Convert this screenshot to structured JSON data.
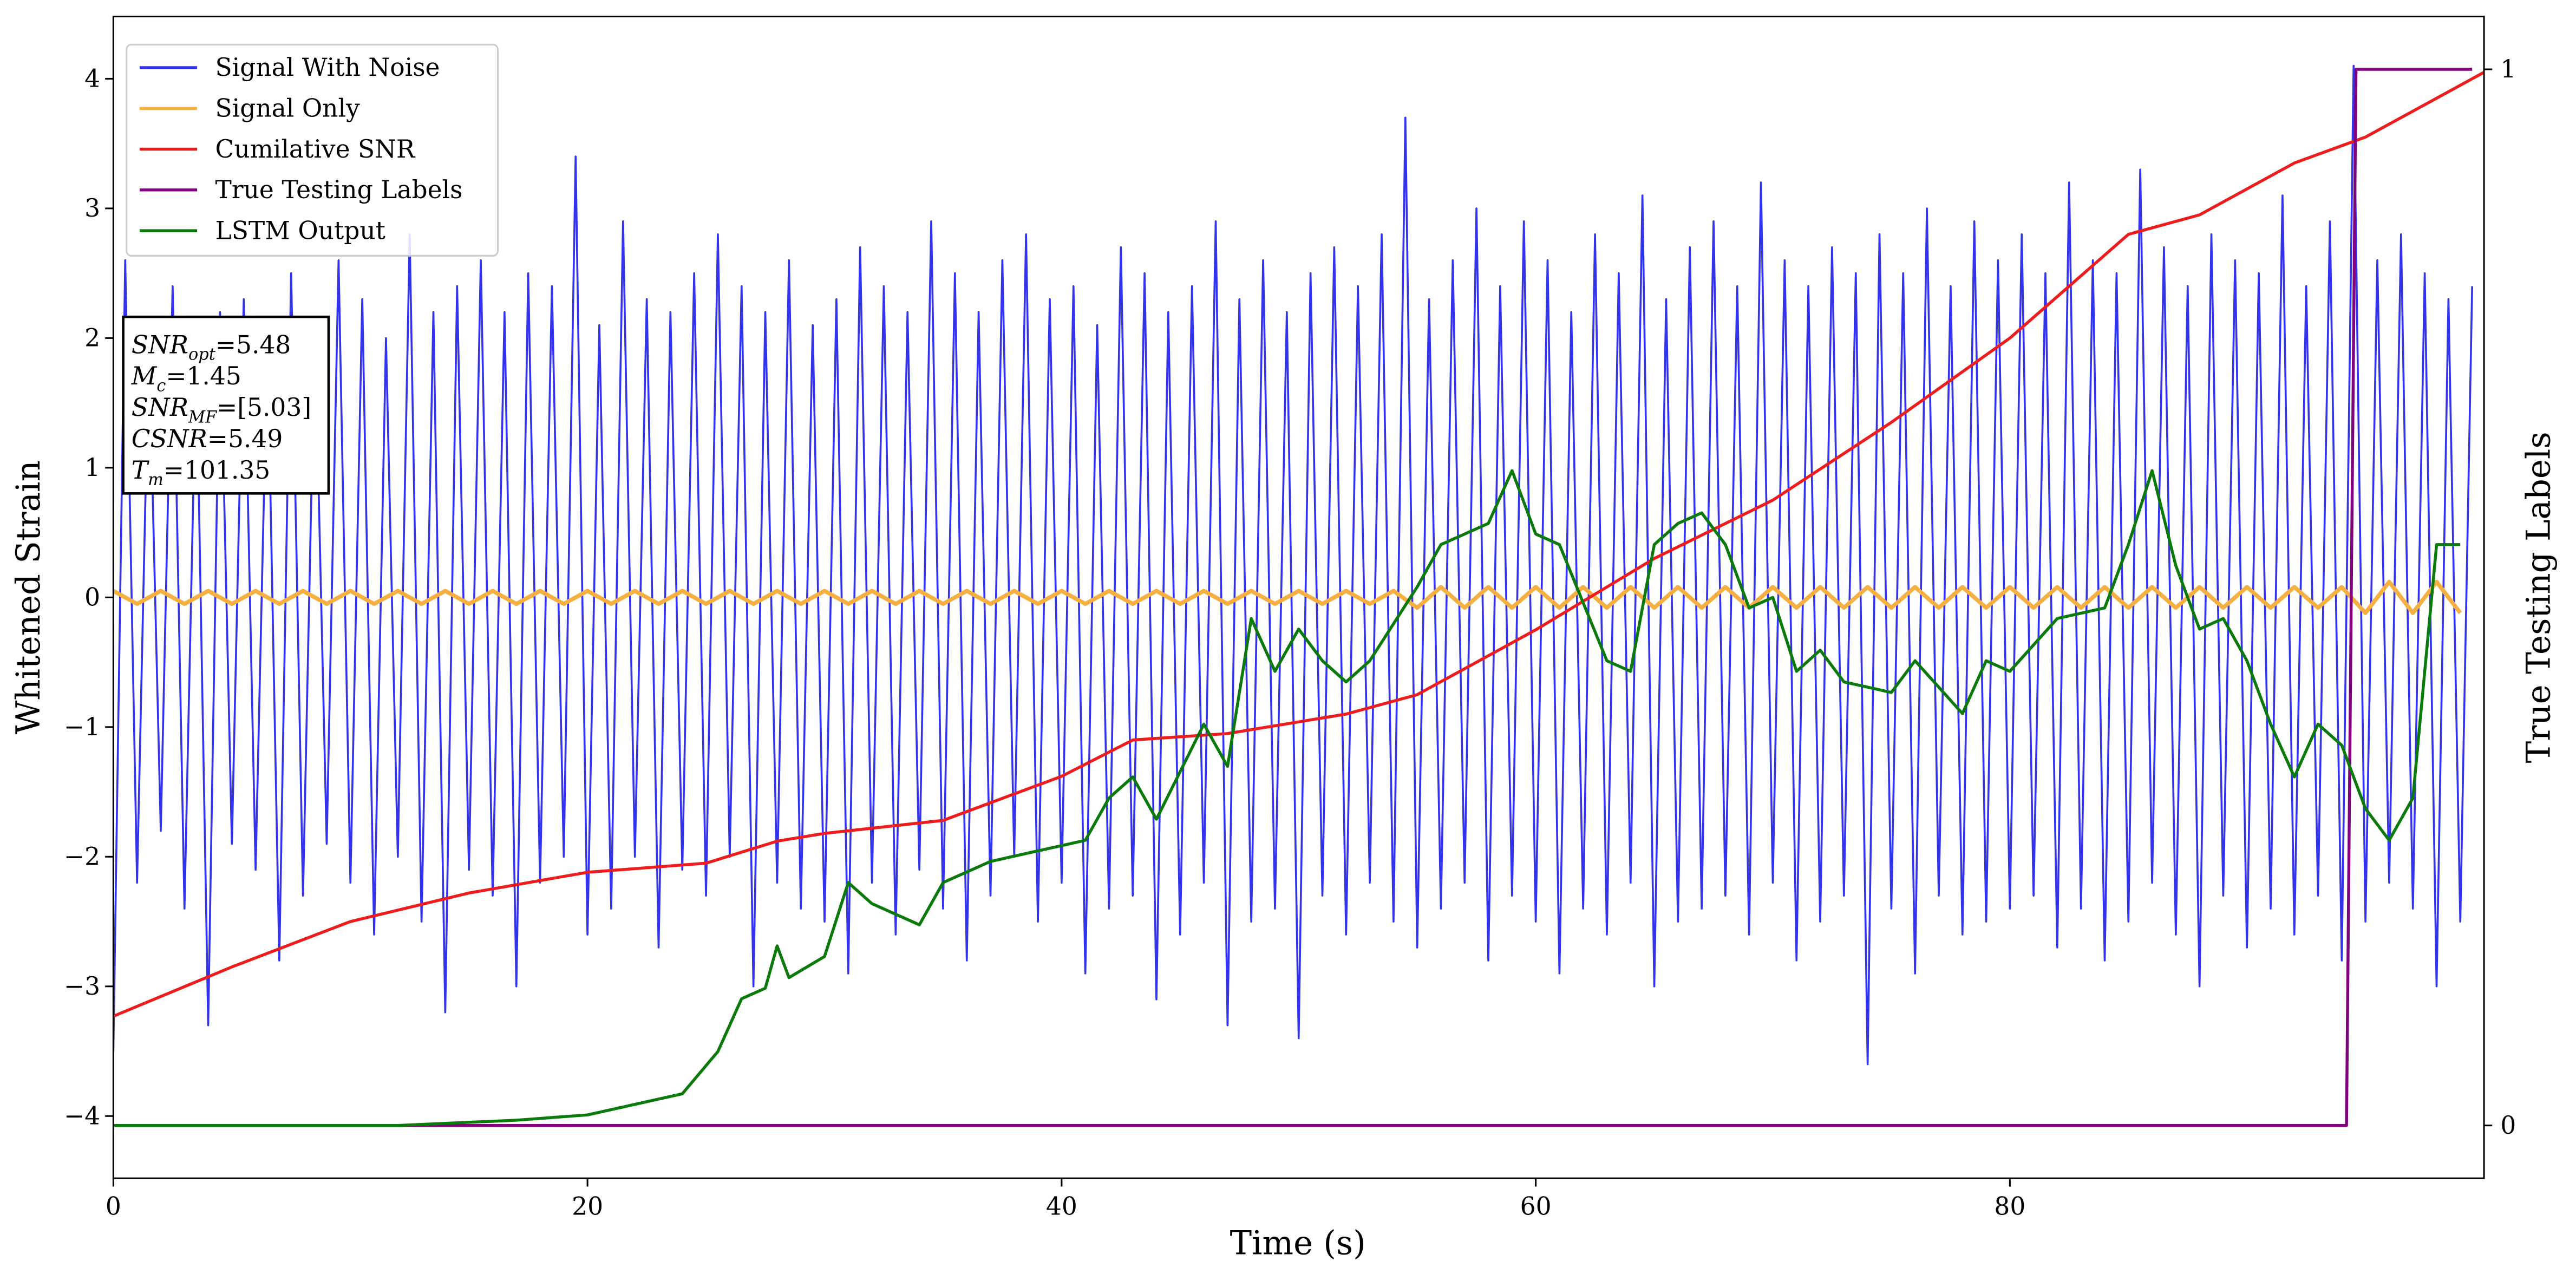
{
  "chart_data": {
    "type": "line",
    "xlabel": "Time (s)",
    "ylabel": "Whitened Strain",
    "y2label": "True Testing Labels",
    "xlim": [
      0,
      100
    ],
    "xticks": [
      0,
      20,
      40,
      60,
      80
    ],
    "ylim": [
      -4.48,
      4.48
    ],
    "yticks": [
      {
        "value": -4,
        "label": "−4"
      },
      {
        "value": -3,
        "label": "−3"
      },
      {
        "value": -2,
        "label": "−2"
      },
      {
        "value": -1,
        "label": "−1"
      },
      0,
      1,
      2,
      3,
      4
    ],
    "y2lim": [
      -0.05,
      1.05
    ],
    "y2ticks": [
      0,
      1
    ],
    "legend": "upper left",
    "annotations": [
      {
        "label": "SNR",
        "subscript": "opt",
        "value": "=5.48"
      },
      {
        "label": "M",
        "subscript": "c",
        "value": "=1.45"
      },
      {
        "label": "SNR",
        "subscript": "MF",
        "value": "=[5.03]"
      },
      {
        "label": "CSNR",
        "value": "=5.49"
      },
      {
        "label": "T",
        "subscript": "m",
        "value": "=101.35"
      }
    ],
    "series": [
      {
        "name": "Signal With Noise",
        "color": "#3333ee",
        "axis": "y",
        "x": [
          0,
          0.5,
          1,
          1.5,
          2,
          2.5,
          3,
          3.5,
          4,
          4.5,
          5,
          5.5,
          6,
          6.5,
          7,
          7.5,
          8,
          8.5,
          9,
          9.5,
          10,
          10.5,
          11,
          11.5,
          12,
          12.5,
          13,
          13.5,
          14,
          14.5,
          15,
          15.5,
          16,
          16.5,
          17,
          17.5,
          18,
          18.5,
          19,
          19.5,
          20,
          20.5,
          21,
          21.5,
          22,
          22.5,
          23,
          23.5,
          24,
          24.5,
          25,
          25.5,
          26,
          26.5,
          27,
          27.5,
          28,
          28.5,
          29,
          29.5,
          30,
          30.5,
          31,
          31.5,
          32,
          32.5,
          33,
          33.5,
          34,
          34.5,
          35,
          35.5,
          36,
          36.5,
          37,
          37.5,
          38,
          38.5,
          39,
          39.5,
          40,
          40.5,
          41,
          41.5,
          42,
          42.5,
          43,
          43.5,
          44,
          44.5,
          45,
          45.5,
          46,
          46.5,
          47,
          47.5,
          48,
          48.5,
          49,
          49.5,
          50,
          50.5,
          51,
          51.5,
          52,
          52.5,
          53,
          53.5,
          54,
          54.5,
          55,
          55.5,
          56,
          56.5,
          57,
          57.5,
          58,
          58.5,
          59,
          59.5,
          60,
          60.5,
          61,
          61.5,
          62,
          62.5,
          63,
          63.5,
          64,
          64.5,
          65,
          65.5,
          66,
          66.5,
          67,
          67.5,
          68,
          68.5,
          69,
          69.5,
          70,
          70.5,
          71,
          71.5,
          72,
          72.5,
          73,
          73.5,
          74,
          74.5,
          75,
          75.5,
          76,
          76.5,
          77,
          77.5,
          78,
          78.5,
          79,
          79.5,
          80,
          80.5,
          81,
          81.5,
          82,
          82.5,
          83,
          83.5,
          84,
          84.5,
          85,
          85.5,
          86,
          86.5,
          87,
          87.5,
          88,
          88.5,
          89,
          89.5,
          90,
          90.5,
          91,
          91.5,
          92,
          92.5,
          93,
          93.5,
          94,
          94.5,
          95,
          95.5,
          96,
          96.5,
          97,
          97.5,
          98,
          98.5,
          99,
          99.5
        ],
        "values": [
          -3.5,
          2.6,
          -2.2,
          2.0,
          -1.8,
          2.4,
          -2.4,
          1.9,
          -3.3,
          2.2,
          -1.9,
          2.3,
          -2.1,
          2.0,
          -2.8,
          2.5,
          -2.3,
          2.1,
          -1.9,
          2.6,
          -2.2,
          2.3,
          -2.6,
          2.0,
          -2.0,
          2.8,
          -2.5,
          2.2,
          -3.2,
          2.4,
          -2.1,
          2.6,
          -2.3,
          2.2,
          -3.0,
          2.5,
          -2.2,
          2.4,
          -2.0,
          3.4,
          -2.6,
          2.1,
          -2.4,
          2.9,
          -2.0,
          2.3,
          -2.7,
          2.2,
          -2.1,
          2.5,
          -2.3,
          2.8,
          -2.0,
          2.4,
          -3.0,
          2.2,
          -2.2,
          2.6,
          -2.4,
          2.1,
          -2.5,
          2.3,
          -2.9,
          2.7,
          -2.2,
          2.4,
          -2.6,
          2.2,
          -2.1,
          2.9,
          -2.4,
          2.5,
          -2.8,
          2.2,
          -2.3,
          2.6,
          -2.0,
          2.8,
          -2.5,
          2.3,
          -2.2,
          2.4,
          -2.9,
          2.1,
          -2.4,
          2.7,
          -2.3,
          2.5,
          -3.1,
          2.2,
          -2.6,
          2.4,
          -2.2,
          2.9,
          -3.3,
          2.3,
          -2.5,
          2.6,
          -2.4,
          2.2,
          -3.4,
          2.5,
          -2.3,
          2.7,
          -2.6,
          2.4,
          -2.2,
          2.8,
          -2.5,
          3.7,
          -2.7,
          2.3,
          -2.4,
          2.6,
          -2.2,
          3.0,
          -2.8,
          2.4,
          -2.3,
          2.9,
          -2.5,
          2.6,
          -2.9,
          2.2,
          -2.4,
          2.8,
          -2.6,
          2.5,
          -2.2,
          3.1,
          -3.0,
          2.3,
          -2.5,
          2.7,
          -2.4,
          2.9,
          -2.3,
          2.4,
          -2.6,
          3.2,
          -2.2,
          2.6,
          -2.8,
          2.4,
          -2.5,
          2.7,
          -2.3,
          2.5,
          -3.6,
          2.8,
          -2.4,
          2.5,
          -2.9,
          3.0,
          -2.3,
          2.4,
          -2.6,
          2.9,
          -2.5,
          2.6,
          -2.4,
          2.8,
          -2.3,
          2.5,
          -2.7,
          3.2,
          -2.4,
          2.6,
          -2.8,
          2.5,
          -2.5,
          3.3,
          -2.2,
          2.7,
          -2.6,
          2.4,
          -3.0,
          2.8,
          -2.3,
          2.6,
          -2.7,
          2.5,
          -2.4,
          3.1,
          -2.6,
          2.4,
          -2.3,
          2.9,
          -2.8,
          4.1,
          -2.5,
          2.6,
          -2.2,
          2.8,
          -2.4,
          2.5,
          -3.0,
          2.3,
          -2.5,
          2.4
        ]
      },
      {
        "name": "Signal Only",
        "color": "#f5b041",
        "axis": "y",
        "x": [
          0,
          1,
          2,
          3,
          4,
          5,
          6,
          7,
          8,
          9,
          10,
          11,
          12,
          13,
          14,
          15,
          16,
          17,
          18,
          19,
          20,
          21,
          22,
          23,
          24,
          25,
          26,
          27,
          28,
          29,
          30,
          31,
          32,
          33,
          34,
          35,
          36,
          37,
          38,
          39,
          40,
          41,
          42,
          43,
          44,
          45,
          46,
          47,
          48,
          49,
          50,
          51,
          52,
          53,
          54,
          55,
          56,
          57,
          58,
          59,
          60,
          61,
          62,
          63,
          64,
          65,
          66,
          67,
          68,
          69,
          70,
          71,
          72,
          73,
          74,
          75,
          76,
          77,
          78,
          79,
          80,
          81,
          82,
          83,
          84,
          85,
          86,
          87,
          88,
          89,
          90,
          91,
          92,
          93,
          94,
          95,
          96,
          97,
          98,
          99
        ],
        "values": [
          0.05,
          -0.05,
          0.05,
          -0.05,
          0.05,
          -0.05,
          0.05,
          -0.05,
          0.05,
          -0.05,
          0.05,
          -0.05,
          0.05,
          -0.05,
          0.05,
          -0.05,
          0.05,
          -0.05,
          0.05,
          -0.05,
          0.05,
          -0.05,
          0.05,
          -0.05,
          0.05,
          -0.05,
          0.05,
          -0.05,
          0.05,
          -0.05,
          0.05,
          -0.05,
          0.05,
          -0.05,
          0.05,
          -0.05,
          0.05,
          -0.05,
          0.05,
          -0.05,
          0.05,
          -0.05,
          0.05,
          -0.05,
          0.05,
          -0.05,
          0.05,
          -0.05,
          0.05,
          -0.05,
          0.05,
          -0.05,
          0.05,
          -0.05,
          0.05,
          -0.08,
          0.08,
          -0.08,
          0.08,
          -0.08,
          0.08,
          -0.08,
          0.08,
          -0.08,
          0.08,
          -0.08,
          0.08,
          -0.08,
          0.08,
          -0.08,
          0.08,
          -0.08,
          0.08,
          -0.08,
          0.08,
          -0.08,
          0.08,
          -0.08,
          0.08,
          -0.08,
          0.08,
          -0.08,
          0.08,
          -0.08,
          0.08,
          -0.08,
          0.08,
          -0.08,
          0.08,
          -0.08,
          0.08,
          -0.08,
          0.08,
          -0.08,
          0.08,
          -0.12,
          0.12,
          -0.12,
          0.12,
          -0.12
        ]
      },
      {
        "name": "Cumilative SNR",
        "color": "#ee1c1c",
        "axis": "y",
        "x": [
          0,
          5,
          10,
          15,
          20,
          25,
          28,
          30,
          35,
          40,
          43,
          47,
          52,
          55,
          60,
          65,
          70,
          75,
          80,
          85,
          88,
          92,
          95,
          100
        ],
        "values": [
          -3.23,
          -2.85,
          -2.5,
          -2.28,
          -2.12,
          -2.05,
          -1.88,
          -1.82,
          -1.72,
          -1.38,
          -1.1,
          -1.05,
          -0.9,
          -0.75,
          -0.25,
          0.3,
          0.75,
          1.35,
          2.0,
          2.8,
          2.95,
          3.35,
          3.55,
          4.05
        ]
      },
      {
        "name": "True Testing Labels",
        "color": "#800080",
        "axis": "y2",
        "x": [
          0,
          94.2,
          94.6,
          99.5
        ],
        "values": [
          0,
          0,
          1,
          1
        ]
      },
      {
        "name": "LSTM Output",
        "color": "#0a7a0a",
        "axis": "y2",
        "x": [
          0,
          12,
          17,
          20,
          22,
          24,
          25.5,
          26.5,
          27.5,
          28,
          28.5,
          30,
          31,
          32,
          34,
          35,
          37,
          39,
          41,
          42,
          43,
          44,
          46,
          47,
          48,
          49,
          50,
          51,
          52,
          53,
          55,
          56,
          58,
          59,
          60,
          61,
          63,
          64,
          65,
          66,
          67,
          68,
          69,
          70,
          71,
          72,
          73,
          75,
          76,
          78,
          79,
          80,
          82,
          84,
          85,
          86,
          87,
          88,
          89,
          90,
          91,
          92,
          93,
          94,
          95,
          96,
          97,
          98,
          99
        ],
        "values": [
          0,
          0,
          0.005,
          0.01,
          0.02,
          0.03,
          0.07,
          0.12,
          0.13,
          0.17,
          0.14,
          0.16,
          0.23,
          0.21,
          0.19,
          0.23,
          0.25,
          0.26,
          0.27,
          0.31,
          0.33,
          0.29,
          0.38,
          0.34,
          0.48,
          0.43,
          0.47,
          0.44,
          0.42,
          0.44,
          0.51,
          0.55,
          0.57,
          0.62,
          0.56,
          0.55,
          0.44,
          0.43,
          0.55,
          0.57,
          0.58,
          0.55,
          0.49,
          0.5,
          0.43,
          0.45,
          0.42,
          0.41,
          0.44,
          0.39,
          0.44,
          0.43,
          0.48,
          0.49,
          0.55,
          0.62,
          0.53,
          0.47,
          0.48,
          0.44,
          0.38,
          0.33,
          0.38,
          0.36,
          0.3,
          0.27,
          0.31,
          0.55,
          0.55
        ]
      }
    ]
  }
}
